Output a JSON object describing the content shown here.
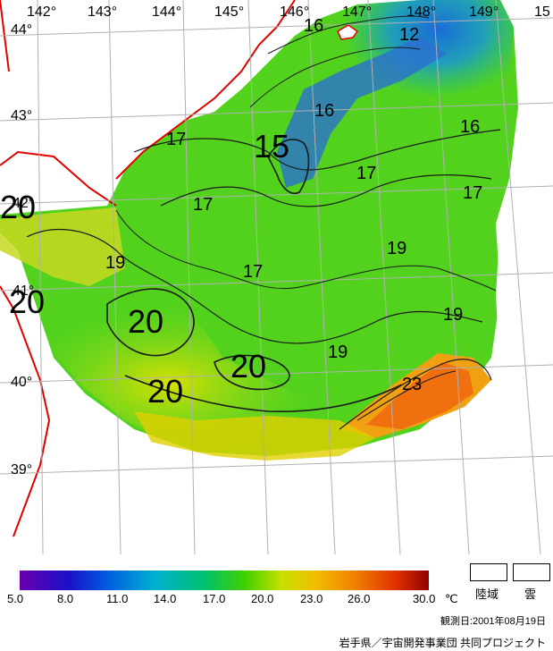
{
  "map": {
    "longitude_labels": [
      "142°",
      "143°",
      "144°",
      "145°",
      "146°",
      "147°",
      "148°",
      "149°",
      "15"
    ],
    "latitude_labels": [
      "44°",
      "43°",
      "42°",
      "41°",
      "40°",
      "39°"
    ],
    "contour_labels": [
      {
        "text": "16",
        "size": "small"
      },
      {
        "text": "12",
        "size": "small"
      },
      {
        "text": "16",
        "size": "small"
      },
      {
        "text": "16",
        "size": "small"
      },
      {
        "text": "15",
        "size": "large"
      },
      {
        "text": "17",
        "size": "small"
      },
      {
        "text": "17",
        "size": "small"
      },
      {
        "text": "17",
        "size": "small"
      },
      {
        "text": "17",
        "size": "small"
      },
      {
        "text": "17",
        "size": "small"
      },
      {
        "text": "19",
        "size": "small"
      },
      {
        "text": "19",
        "size": "small"
      },
      {
        "text": "19",
        "size": "small"
      },
      {
        "text": "19",
        "size": "small"
      },
      {
        "text": "20",
        "size": "large"
      },
      {
        "text": "20",
        "size": "large"
      },
      {
        "text": "20",
        "size": "large"
      },
      {
        "text": "20",
        "size": "large"
      },
      {
        "text": "20",
        "size": "large"
      },
      {
        "text": "23",
        "size": "small"
      }
    ],
    "colors": {
      "coast": "#e00000",
      "grid": "#b0b0b0",
      "land": "#ffffff"
    }
  },
  "legend": {
    "ticks": [
      "5.0",
      "8.0",
      "11.0",
      "14.0",
      "17.0",
      "20.0",
      "23.0",
      "26.0",
      "30.0"
    ],
    "unit": "℃",
    "land_label": "陸域",
    "cloud_label": "雲",
    "observation_date": "観測日:2001年08月19日",
    "credit": "岩手県／宇宙開発事業団 共同プロジェクト"
  }
}
